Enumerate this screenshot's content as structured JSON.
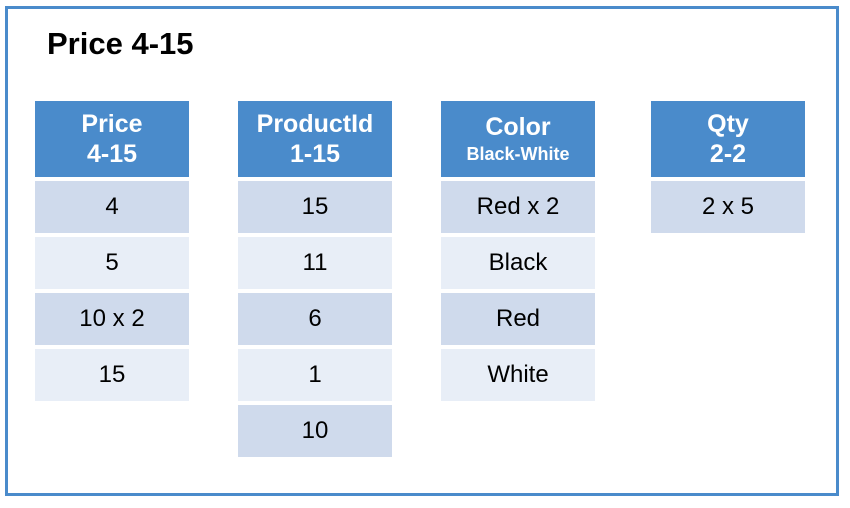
{
  "title": "Price 4-15",
  "colors": {
    "header": "#4a8bcb",
    "row_dark": "#cfdaec",
    "row_light": "#e8eef7",
    "border": "#4a8bcb"
  },
  "columns": [
    {
      "name": "Price",
      "range": "4-15",
      "values": [
        "4",
        "5",
        "10 x 2",
        "15"
      ]
    },
    {
      "name": "ProductId",
      "range": "1-15",
      "values": [
        "15",
        "11",
        "6",
        "1",
        "10"
      ]
    },
    {
      "name": "Color",
      "range": "Black-White",
      "values": [
        "Red x 2",
        "Black",
        "Red",
        "White"
      ]
    },
    {
      "name": "Qty",
      "range": "2-2",
      "values": [
        "2 x 5"
      ]
    }
  ]
}
